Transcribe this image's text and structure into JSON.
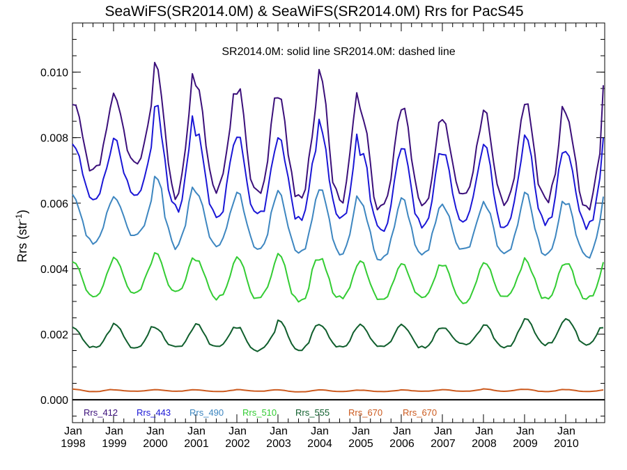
{
  "chart_data": {
    "type": "line",
    "title": "SeaWiFS(SR2014.0M) & SeaWiFS(SR2014.0M)  Rrs for PacS45",
    "annotation": "SR2014.0M: solid line   SR2014.0M: dashed line",
    "ylabel": {
      "base": "Rrs (str",
      "sup": "-1",
      "close": ")"
    },
    "ylim": [
      -0.0007,
      0.0115
    ],
    "xlim": [
      1998.0,
      2010.95
    ],
    "y_ticks": [
      {
        "value": 0.0,
        "label": "0.000"
      },
      {
        "value": 0.002,
        "label": "0.002"
      },
      {
        "value": 0.004,
        "label": "0.004"
      },
      {
        "value": 0.006,
        "label": "0.006"
      },
      {
        "value": 0.008,
        "label": "0.008"
      },
      {
        "value": 0.01,
        "label": "0.010"
      }
    ],
    "x_ticks": [
      {
        "value": 1998,
        "month": "Jan",
        "year": "1998"
      },
      {
        "value": 1999,
        "month": "Jan",
        "year": "1999"
      },
      {
        "value": 2000,
        "month": "Jan",
        "year": "2000"
      },
      {
        "value": 2001,
        "month": "Jan",
        "year": "2001"
      },
      {
        "value": 2002,
        "month": "Jan",
        "year": "2002"
      },
      {
        "value": 2003,
        "month": "Jan",
        "year": "2003"
      },
      {
        "value": 2004,
        "month": "Jan",
        "year": "2004"
      },
      {
        "value": 2005,
        "month": "Jan",
        "year": "2005"
      },
      {
        "value": 2006,
        "month": "Jan",
        "year": "2006"
      },
      {
        "value": 2007,
        "month": "Jan",
        "year": "2007"
      },
      {
        "value": 2008,
        "month": "Jan",
        "year": "2008"
      },
      {
        "value": 2009,
        "month": "Jan",
        "year": "2009"
      },
      {
        "value": 2010,
        "month": "Jan",
        "year": "2010"
      }
    ],
    "zero_line": 0.0,
    "series": [
      {
        "name": "Rrs_412",
        "color": "#3b0f7a",
        "mean": 0.0074,
        "amplitude": 0.0011,
        "peaks": [
          0.0091,
          0.0093,
          0.0105,
          0.0096,
          0.0095,
          0.0094,
          0.0099,
          0.0088,
          0.009,
          0.0085,
          0.0088,
          0.0092,
          0.0088,
          0.0096
        ],
        "troughs": [
          0.007,
          0.0072,
          0.0063,
          0.0064,
          0.0063,
          0.0062,
          0.0061,
          0.0058,
          0.006,
          0.0063,
          0.006,
          0.0061,
          0.0059
        ],
        "last": 0.0096
      },
      {
        "name": "Rrs_443",
        "color": "#1a16d6",
        "mean": 0.0065,
        "amplitude": 0.001,
        "peaks": [
          0.0078,
          0.0079,
          0.009,
          0.0082,
          0.008,
          0.0081,
          0.0084,
          0.0076,
          0.0078,
          0.0075,
          0.0077,
          0.008,
          0.0076,
          0.008
        ],
        "troughs": [
          0.0062,
          0.0063,
          0.0058,
          0.0056,
          0.0056,
          0.0055,
          0.0055,
          0.0051,
          0.0053,
          0.0055,
          0.0053,
          0.0054,
          0.0053
        ],
        "last": 0.008
      },
      {
        "name": "Rrs_490",
        "color": "#3d86c0",
        "mean": 0.0055,
        "amplitude": 0.0007,
        "peaks": [
          0.0062,
          0.0062,
          0.0069,
          0.0063,
          0.0063,
          0.0063,
          0.0065,
          0.006,
          0.0061,
          0.0059,
          0.006,
          0.0063,
          0.006,
          0.0062
        ],
        "troughs": [
          0.0048,
          0.005,
          0.0047,
          0.0047,
          0.0046,
          0.0045,
          0.0045,
          0.0043,
          0.0045,
          0.0046,
          0.0045,
          0.0045,
          0.0044
        ],
        "last": 0.0062
      },
      {
        "name": "Rrs_510",
        "color": "#33cc33",
        "mean": 0.0037,
        "amplitude": 0.0005,
        "peaks": [
          0.0042,
          0.0043,
          0.0045,
          0.0043,
          0.0043,
          0.0045,
          0.0043,
          0.0042,
          0.0042,
          0.0041,
          0.0042,
          0.0043,
          0.0042,
          0.0042
        ],
        "troughs": [
          0.0032,
          0.0033,
          0.0033,
          0.0031,
          0.0031,
          0.003,
          0.0031,
          0.003,
          0.0031,
          0.003,
          0.0031,
          0.0031,
          0.0031
        ],
        "last": 0.0042
      },
      {
        "name": "Rrs_555",
        "color": "#0f5e2c",
        "mean": 0.0019,
        "amplitude": 0.0003,
        "peaks": [
          0.0022,
          0.0023,
          0.0022,
          0.0023,
          0.0022,
          0.0024,
          0.0023,
          0.0023,
          0.0023,
          0.0022,
          0.0023,
          0.0025,
          0.0025,
          0.0022
        ],
        "troughs": [
          0.0016,
          0.0016,
          0.0016,
          0.0016,
          0.0015,
          0.0015,
          0.0016,
          0.0016,
          0.0016,
          0.0017,
          0.0016,
          0.0017,
          0.0017
        ],
        "last": 0.0022
      },
      {
        "name": "Rrs_670",
        "color": "#cc5a1e",
        "mean": 0.00028,
        "amplitude": 3e-05,
        "peaks": [
          0.00032,
          0.0003,
          0.00031,
          0.0003,
          0.00031,
          0.0003,
          0.0003,
          0.00029,
          0.0003,
          0.00031,
          0.00033,
          0.00032,
          0.00031,
          0.0003
        ],
        "troughs": [
          0.00025,
          0.00026,
          0.00026,
          0.00025,
          0.00026,
          0.00024,
          0.00025,
          0.00025,
          0.00026,
          0.00026,
          0.00026,
          0.00025,
          0.00025
        ],
        "last": 0.0003
      },
      {
        "name": "Rrs_670",
        "color": "#cc5a1e",
        "legend_only": true
      }
    ]
  }
}
